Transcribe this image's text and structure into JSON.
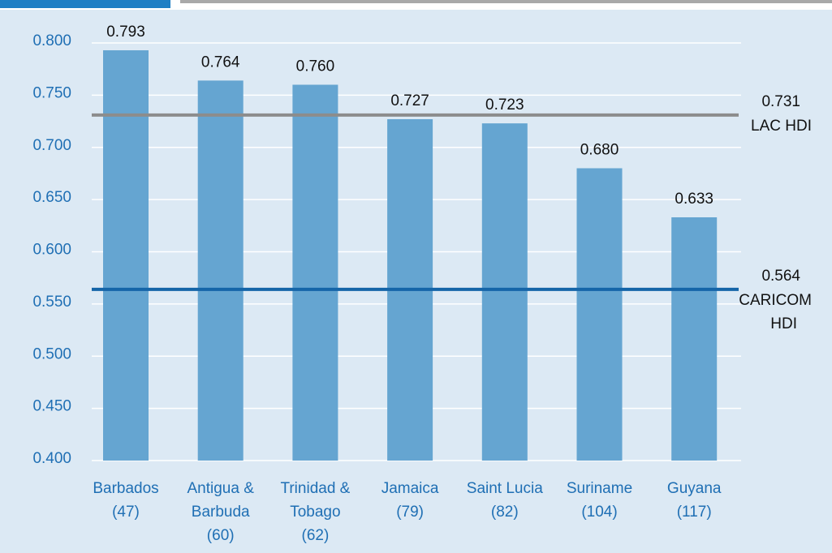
{
  "chart_data": {
    "type": "bar",
    "categories": [
      [
        "Barbados",
        "(47)"
      ],
      [
        "Antigua &",
        "Barbuda",
        "(60)"
      ],
      [
        "Trinidad &",
        "Tobago",
        "(62)"
      ],
      [
        "Jamaica",
        "(79)"
      ],
      [
        "Saint Lucia",
        "(82)"
      ],
      [
        "Suriname",
        "(104)"
      ],
      [
        "Guyana",
        "(117)"
      ]
    ],
    "values": [
      0.793,
      0.764,
      0.76,
      0.727,
      0.723,
      0.68,
      0.633
    ],
    "value_labels": [
      "0.793",
      "0.764",
      "0.760",
      "0.727",
      "0.723",
      "0.680",
      "0.633"
    ],
    "color": "#65a5d1",
    "ylim": [
      0.4,
      0.8
    ],
    "yticks": [
      {
        "value": 0.4,
        "label": "0.400"
      },
      {
        "value": 0.45,
        "label": "0.450"
      },
      {
        "value": 0.5,
        "label": "0.500"
      },
      {
        "value": 0.55,
        "label": "0.550"
      },
      {
        "value": 0.6,
        "label": "0.600"
      },
      {
        "value": 0.65,
        "label": "0.650"
      },
      {
        "value": 0.7,
        "label": "0.700"
      },
      {
        "value": 0.75,
        "label": "0.750"
      },
      {
        "value": 0.8,
        "label": "0.800"
      }
    ],
    "grid": true,
    "reference_lines": [
      {
        "value": 0.731,
        "label": [
          "LAC HDI"
        ],
        "color": "#8c8c8c"
      },
      {
        "value": 0.564,
        "label": [
          "CARICOM",
          "HDI"
        ],
        "color": "#1565a8"
      }
    ]
  }
}
